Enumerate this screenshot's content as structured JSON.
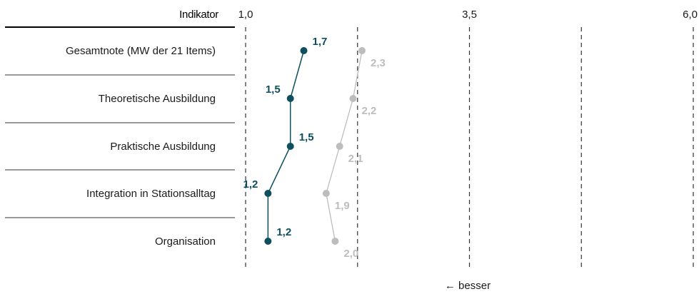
{
  "chart_data": {
    "type": "line",
    "orientation": "horizontal",
    "header_label": "Indikator",
    "x_ticks": [
      "1,0",
      "3,5",
      "6,0"
    ],
    "xlim": [
      1.0,
      6.0
    ],
    "gridlines": [
      1.0,
      2.25,
      3.5,
      4.75,
      6.0
    ],
    "categories": [
      "Gesamtnote (MW der 21 Items)",
      "Theoretische Ausbildung",
      "Praktische Ausbildung",
      "Integration in Stationsalltag",
      "Organisation"
    ],
    "series": [
      {
        "color": "#0d4f5c",
        "values": [
          1.65,
          1.5,
          1.5,
          1.25,
          1.25
        ],
        "labels": [
          "1,7",
          "1,5",
          "1,5",
          "1,2",
          "1,2"
        ]
      },
      {
        "color": "#bdbdbd",
        "values": [
          2.3,
          2.2,
          2.05,
          1.9,
          2.0
        ],
        "labels": [
          "2,3",
          "2,2",
          "2,1",
          "1,9",
          "2,0"
        ]
      }
    ],
    "note": "← besser",
    "grid": true
  }
}
